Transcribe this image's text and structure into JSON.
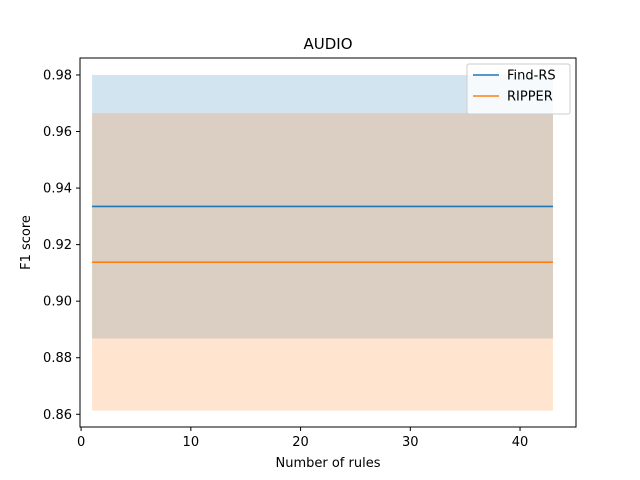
{
  "chart_data": {
    "type": "line",
    "title": "AUDIO",
    "xlabel": "Number of rules",
    "ylabel": "F1 score",
    "xlim": [
      -0.1,
      45.1
    ],
    "ylim": [
      0.8555,
      0.986
    ],
    "xticks": [
      0,
      10,
      20,
      30,
      40
    ],
    "yticks": [
      0.86,
      0.88,
      0.9,
      0.92,
      0.94,
      0.96,
      0.98
    ],
    "ytick_labels": [
      "0.86",
      "0.88",
      "0.90",
      "0.92",
      "0.94",
      "0.96",
      "0.98"
    ],
    "grid": false,
    "legend_position": "top-right",
    "series": [
      {
        "name": "Find-RS",
        "x": [
          1,
          43
        ],
        "y": [
          0.9335,
          0.9335
        ],
        "band_lower": [
          0.8868,
          0.8868
        ],
        "band_upper": [
          0.98,
          0.98
        ],
        "color": "#1f77b4"
      },
      {
        "name": "RIPPER",
        "x": [
          1,
          43
        ],
        "y": [
          0.9138,
          0.9138
        ],
        "band_lower": [
          0.8613,
          0.8613
        ],
        "band_upper": [
          0.9665,
          0.9665
        ],
        "color": "#ff7f0e"
      }
    ]
  }
}
